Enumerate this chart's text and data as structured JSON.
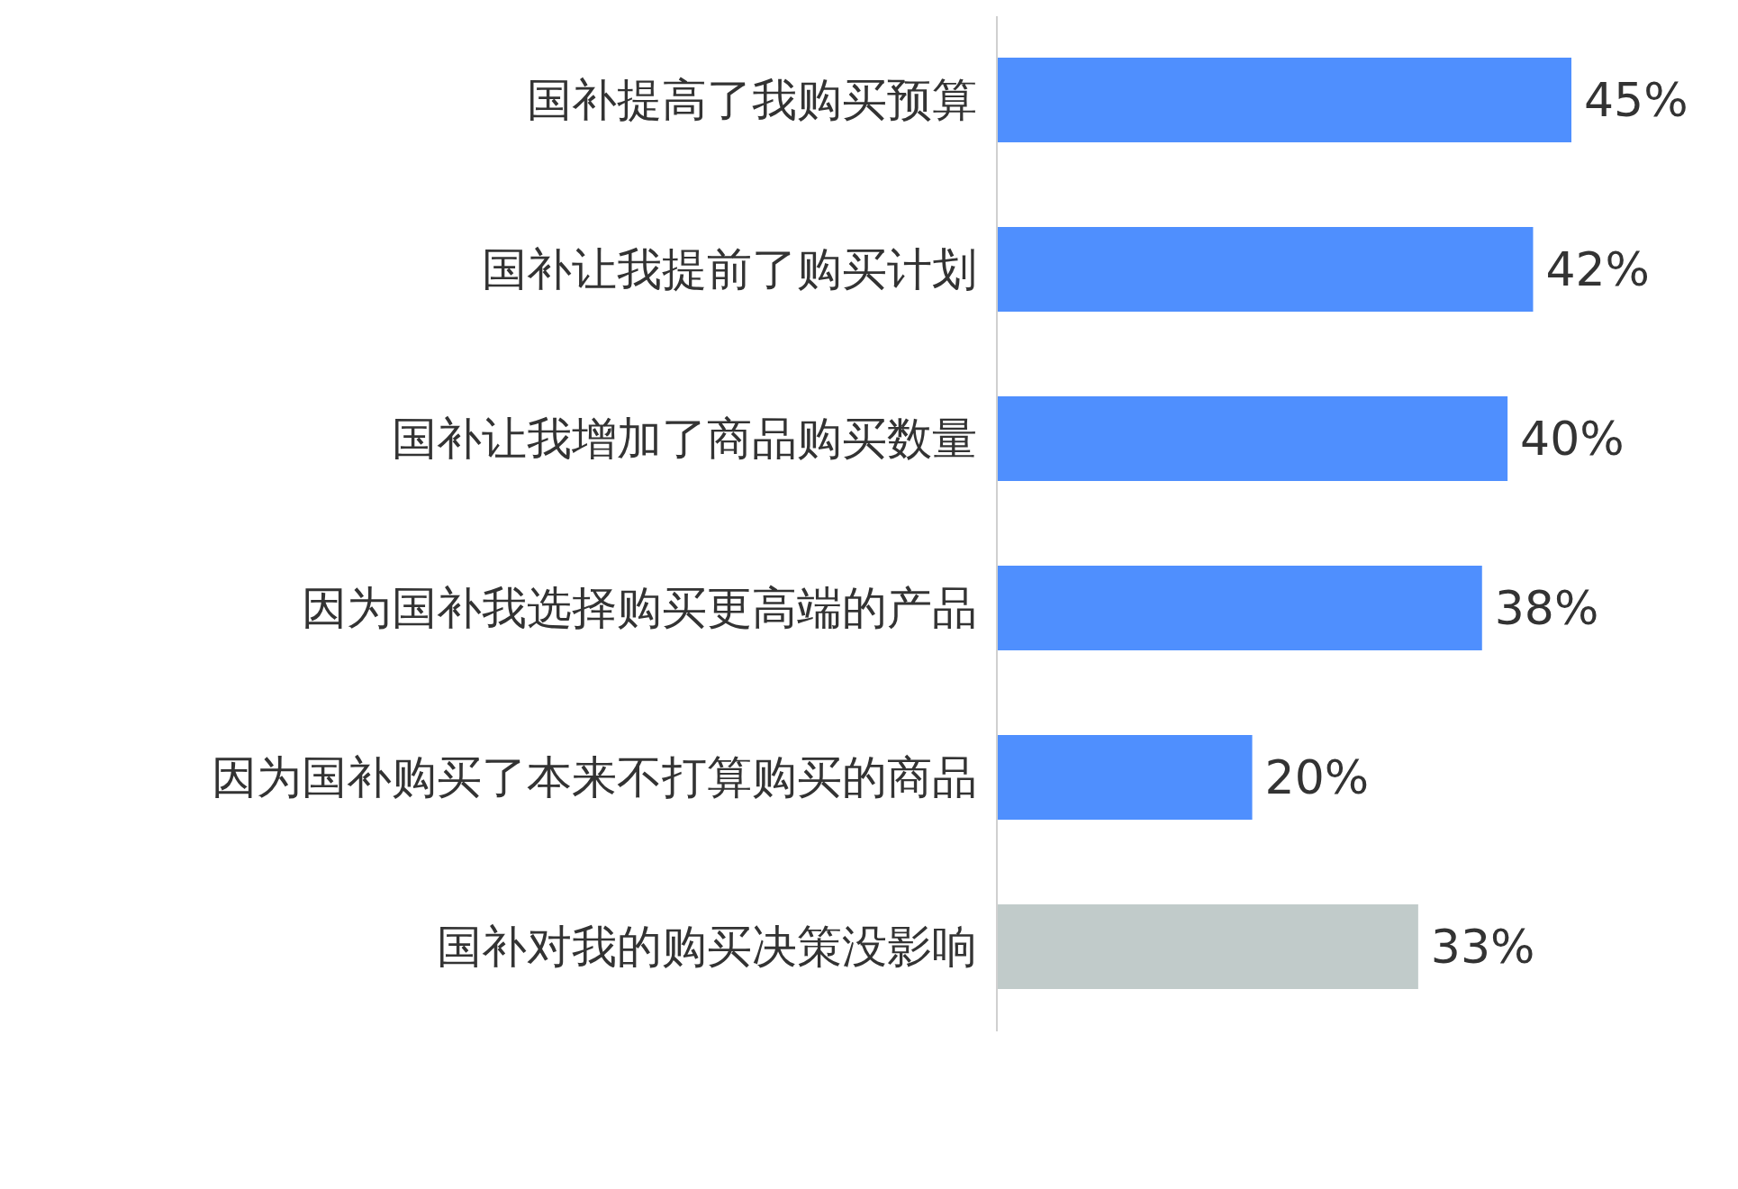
{
  "chart_data": {
    "type": "bar",
    "orientation": "horizontal",
    "categories": [
      "国补提高了我购买预算",
      "国补让我提前了购买计划",
      "国补让我增加了商品购买数量",
      "因为国补我选择购买更高端的产品",
      "因为国补购买了本来不打算购买的商品",
      "国补对我的购买决策没影响"
    ],
    "values": [
      45,
      42,
      40,
      38,
      20,
      33
    ],
    "colors": [
      "#4f8ffe",
      "#4f8ffe",
      "#4f8ffe",
      "#4f8ffe",
      "#4f8ffe",
      "#c1cbca"
    ],
    "value_labels": [
      "45%",
      "42%",
      "40%",
      "38%",
      "20%",
      "33%"
    ]
  }
}
